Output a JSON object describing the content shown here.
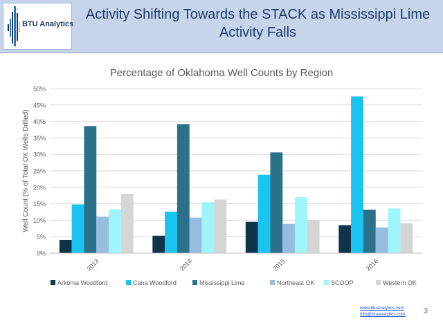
{
  "header": {
    "title": "Activity Shifting Towards the STACK as Mississippi Lime Activity Falls",
    "logo_text": "BTU Analytics"
  },
  "footer": {
    "link1": "www.btuanalytics.com",
    "link2": "info@btuanalytics.com",
    "page_number": "3"
  },
  "colors": {
    "header_bg": "#c7d5ec",
    "title": "#1f3864"
  },
  "chart_data": {
    "type": "bar",
    "title": "Percentage of Oklahoma Well Counts by Region",
    "ylabel": "Well Count (% of Total OK Wells Drilled)",
    "xlabel": "",
    "categories": [
      "2013",
      "2014",
      "2015",
      "2016"
    ],
    "ylim": [
      0,
      50
    ],
    "yticks": [
      "0%",
      "5%",
      "10%",
      "15%",
      "20%",
      "25%",
      "30%",
      "35%",
      "40%",
      "45%",
      "50%"
    ],
    "grid": true,
    "legend_position": "bottom",
    "series": [
      {
        "name": "Arkoma Woodford",
        "color": "#0f3349",
        "values": [
          4.0,
          5.3,
          9.5,
          8.5
        ]
      },
      {
        "name": "Cana Woodford",
        "color": "#19c4f0",
        "values": [
          14.8,
          12.6,
          23.8,
          47.6
        ]
      },
      {
        "name": "Mississippi Lime",
        "color": "#2b7189",
        "values": [
          38.6,
          39.2,
          30.6,
          13.2
        ]
      },
      {
        "name": "Northeast OK",
        "color": "#97bde0",
        "values": [
          11.1,
          10.8,
          8.9,
          7.8
        ]
      },
      {
        "name": "SCOOP",
        "color": "#9ef5fb",
        "values": [
          13.3,
          15.5,
          17.0,
          13.6
        ]
      },
      {
        "name": "Western OK",
        "color": "#d5d5d5",
        "values": [
          18.0,
          16.3,
          10.0,
          9.1
        ]
      }
    ]
  }
}
